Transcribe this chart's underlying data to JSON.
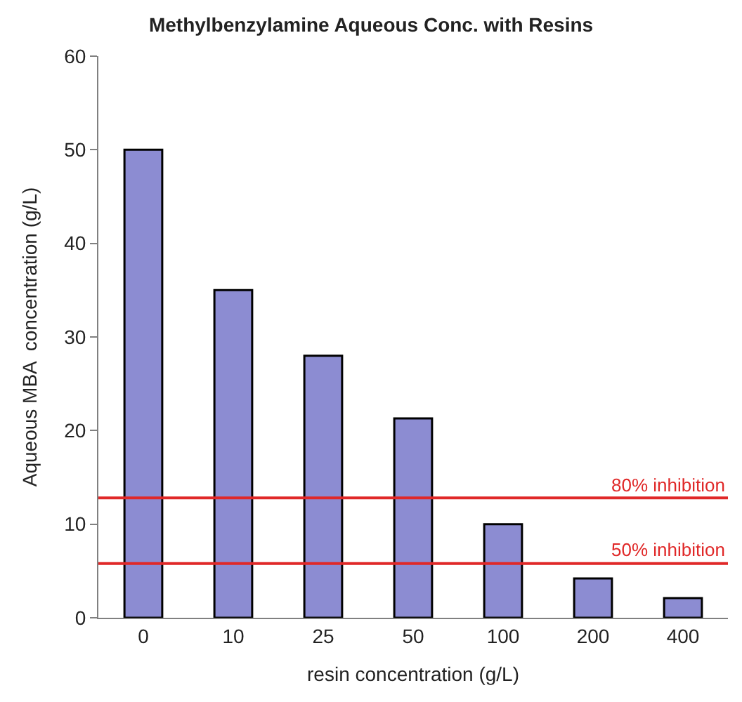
{
  "chart_data": {
    "type": "bar",
    "title": "Methylbenzylamine Aqueous Conc. with Resins",
    "xlabel": "resin concentration (g/L)",
    "ylabel": "Aqueous MBA  concentration (g/L)",
    "categories": [
      "0",
      "10",
      "25",
      "50",
      "100",
      "200",
      "400"
    ],
    "values": [
      50,
      35,
      28,
      21.3,
      10,
      4.2,
      2.1
    ],
    "color": "#8c8cd2",
    "ylim": [
      0,
      60
    ],
    "yticks": [
      0,
      10,
      20,
      30,
      40,
      50,
      60
    ],
    "ref_lines": [
      {
        "axis": "y",
        "value": 12.8,
        "label": "80% inhibition",
        "color": "#e02828"
      },
      {
        "axis": "y",
        "value": 5.8,
        "label": "50% inhibition",
        "color": "#e02828"
      }
    ]
  }
}
